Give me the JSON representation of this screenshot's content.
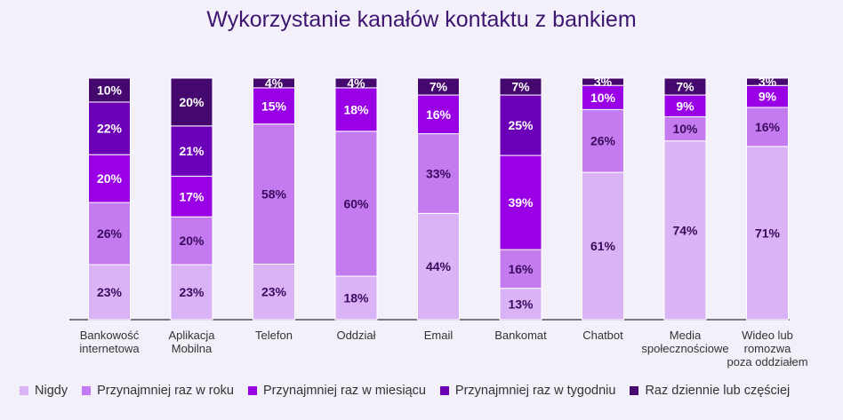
{
  "chart_data": {
    "type": "bar",
    "stacked": true,
    "title": "Wykorzystanie kanałów kontaktu z bankiem",
    "categories": [
      [
        "Bankowość",
        "internetowa"
      ],
      [
        "Aplikacja",
        "Mobilna"
      ],
      [
        "Telefon"
      ],
      [
        "Oddział"
      ],
      [
        "Email"
      ],
      [
        "Bankomat"
      ],
      [
        "Chatbot"
      ],
      [
        "Media",
        "społecznościowe"
      ],
      [
        "Wideo lub",
        "romozwa",
        "poza oddziałem"
      ]
    ],
    "series": [
      {
        "name": "Nigdy",
        "color": "#d9b3f5",
        "values": [
          23,
          23,
          23,
          18,
          44,
          13,
          61,
          74,
          71
        ]
      },
      {
        "name": "Przynajmniej raz w roku",
        "color": "#c37bef",
        "values": [
          26,
          20,
          58,
          60,
          33,
          16,
          26,
          10,
          16
        ]
      },
      {
        "name": "Przynajmniej raz w miesiącu",
        "color": "#9a00e6",
        "values": [
          20,
          17,
          15,
          18,
          16,
          39,
          10,
          9,
          9
        ]
      },
      {
        "name": "Przynajmniej raz w tygodniu",
        "color": "#6b00b8",
        "values": [
          22,
          21,
          0,
          0,
          0,
          25,
          0,
          0,
          0
        ]
      },
      {
        "name": "Raz dziennie lub częściej",
        "color": "#45086f",
        "values": [
          10,
          20,
          4,
          4,
          7,
          7,
          3,
          7,
          3
        ]
      }
    ],
    "value_suffix": "%",
    "legend_position": "bottom"
  }
}
